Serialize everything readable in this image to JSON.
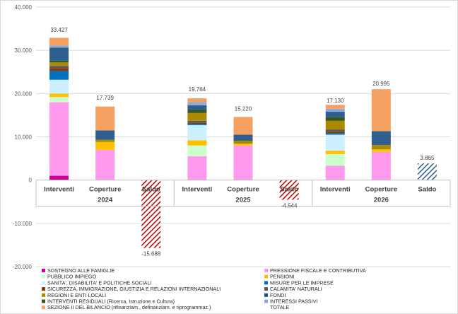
{
  "chart_data": {
    "type": "bar",
    "stacked": true,
    "ylim": [
      -20000,
      40000
    ],
    "y_ticks": [
      "-20.000",
      "-10.000",
      "0",
      "10.000",
      "20.000",
      "30.000",
      "40.000"
    ],
    "y_tick_values": [
      -20000,
      -10000,
      0,
      10000,
      20000,
      30000,
      40000
    ],
    "years": [
      "2024",
      "2025",
      "2026"
    ],
    "categories": [
      "Interventi",
      "Coperture",
      "Saldo",
      "Interventi",
      "Coperture",
      "Saldo",
      "Interventi",
      "Coperture",
      "Saldo"
    ],
    "category_year": [
      0,
      0,
      0,
      1,
      1,
      1,
      2,
      2,
      2
    ],
    "grid": true,
    "legend_position": "bottom",
    "series": [
      {
        "name": "SOSTEGNO ALLE FAMIGLIE",
        "color": "#cc0099",
        "values": [
          1000,
          0,
          0,
          0,
          0,
          0,
          0,
          0,
          0
        ]
      },
      {
        "name": "PRESSIONE FISCALE E CONTRIBUTIVA",
        "color": "#ff99ee",
        "values": [
          17000,
          7000,
          0,
          5500,
          8000,
          0,
          3300,
          6500,
          0
        ]
      },
      {
        "name": "PUBBLICO IMPIEGO",
        "color": "#ccffcc",
        "values": [
          1200,
          0,
          0,
          2500,
          0,
          0,
          2700,
          0,
          0
        ]
      },
      {
        "name": "PENSIONI",
        "color": "#ffc000",
        "values": [
          800,
          1800,
          0,
          1200,
          400,
          0,
          800,
          600,
          0
        ]
      },
      {
        "name": "SANITA', DISABILITA' E POLITICHE SOCIALI",
        "color": "#ccf0ff",
        "values": [
          3200,
          0,
          0,
          3500,
          0,
          0,
          3700,
          0,
          0
        ]
      },
      {
        "name": "MISURE PER LE IMPRESE",
        "color": "#0070c0",
        "values": [
          2000,
          0,
          0,
          300,
          0,
          0,
          300,
          0,
          0
        ]
      },
      {
        "name": "SICUREZZA, IMMIGRAZIONE, GIUSTIZIA E RELAZIONI INTERNAZIONALI",
        "color": "#843c0c",
        "values": [
          700,
          0,
          0,
          300,
          0,
          0,
          400,
          0,
          0
        ]
      },
      {
        "name": "CALAMITA' NATURALI",
        "color": "#595959",
        "values": [
          500,
          0,
          0,
          400,
          0,
          0,
          500,
          0,
          0
        ]
      },
      {
        "name": "REGIONI E ENTI LOCALI",
        "color": "#ac8a00",
        "values": [
          800,
          500,
          0,
          1800,
          700,
          0,
          2000,
          1000,
          0
        ]
      },
      {
        "name": "FONDI",
        "color": "#1f4e79",
        "values": [
          0,
          0,
          0,
          0,
          0,
          0,
          0,
          0,
          0
        ]
      },
      {
        "name": "INTERVENTI RESIDUALI (Ricerca, Istruzione e Cultura)",
        "color": "#375623",
        "values": [
          400,
          0,
          0,
          800,
          0,
          0,
          900,
          0,
          0
        ]
      },
      {
        "name": "INTERESSI PASSIVI",
        "color": "#8eaadb",
        "values": [
          0,
          0,
          0,
          0,
          0,
          0,
          0,
          0,
          0
        ]
      },
      {
        "name": "SEZIONE II DEL BILANCIO (rifinanziam., definanziam. e riprogrammaz.)",
        "color": "#f4a060",
        "values": [
          0,
          0,
          0,
          0,
          0,
          0,
          0,
          0,
          0
        ]
      },
      {
        "name": "TOTALE",
        "color": "#c00000",
        "pattern": "hatch",
        "values": [
          0,
          0,
          -15688,
          0,
          0,
          -4544,
          0,
          0,
          3865
        ]
      }
    ],
    "extra_segments": [
      {
        "series": "FONDI",
        "color": "#2e5f8f",
        "values": [
          3000,
          2200,
          0,
          1000,
          1400,
          0,
          1200,
          3200,
          0
        ]
      },
      {
        "series": "INTERESSI PASSIVI",
        "color": "#8eaadb",
        "values": [
          500,
          0,
          0,
          700,
          0,
          0,
          700,
          0,
          0
        ]
      },
      {
        "series": "SEZIONE II DEL BILANCIO (rifinanziam., definanziam. e riprogrammaz.)",
        "color": "#f4a060",
        "values": [
          1800,
          5500,
          0,
          900,
          4100,
          0,
          900,
          9700,
          0
        ]
      }
    ],
    "data_labels": [
      "33.427",
      "17.739",
      "-15.688",
      "19.764",
      "15.220",
      "-4.544",
      "17.130",
      "20.995",
      "3.865"
    ],
    "data_label_values": [
      33427,
      17739,
      -15688,
      19764,
      15220,
      -4544,
      17130,
      20995,
      3865
    ]
  }
}
